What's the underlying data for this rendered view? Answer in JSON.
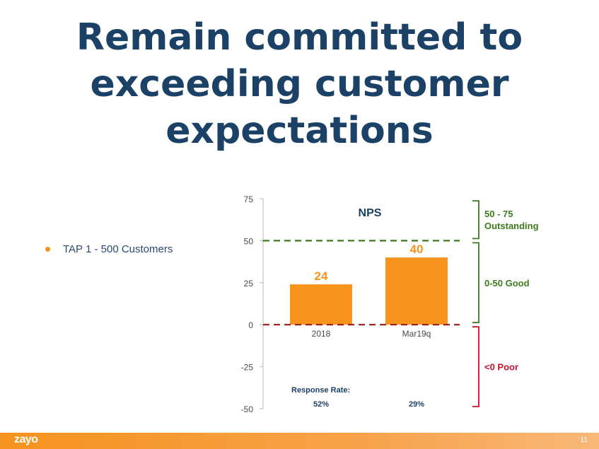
{
  "slide": {
    "title_lines": [
      "Remain committed to",
      "exceeding customer",
      "expectations"
    ],
    "bullet": "TAP 1 - 500 Customers",
    "footer_logo": "zayo",
    "page_number": "11"
  },
  "chart_data": {
    "type": "bar",
    "title": "NPS",
    "categories": [
      "2018",
      "Mar19q"
    ],
    "values": [
      24,
      40
    ],
    "ylim": [
      -50,
      75
    ],
    "yticks": [
      75,
      50,
      25,
      0,
      -25,
      -50
    ],
    "bar_color": "#f7941d",
    "value_label_color": "#f7941d",
    "thresholds": [
      {
        "value": 50,
        "color": "#3d7a1e"
      },
      {
        "value": 0,
        "color": "#9b1c1c"
      }
    ],
    "bands": [
      {
        "from": 50,
        "to": 75,
        "lines": [
          "50 - 75",
          "Outstanding"
        ],
        "color": "#3d7a1e"
      },
      {
        "from": 0,
        "to": 50,
        "lines": [
          "0-50 Good"
        ],
        "color": "#3d7a1e"
      },
      {
        "from": -50,
        "to": 0,
        "lines": [
          "<0 Poor"
        ],
        "color": "#c8102e"
      }
    ],
    "response_rate": {
      "label": "Response Rate:",
      "values": [
        "52%",
        "29%"
      ]
    }
  }
}
